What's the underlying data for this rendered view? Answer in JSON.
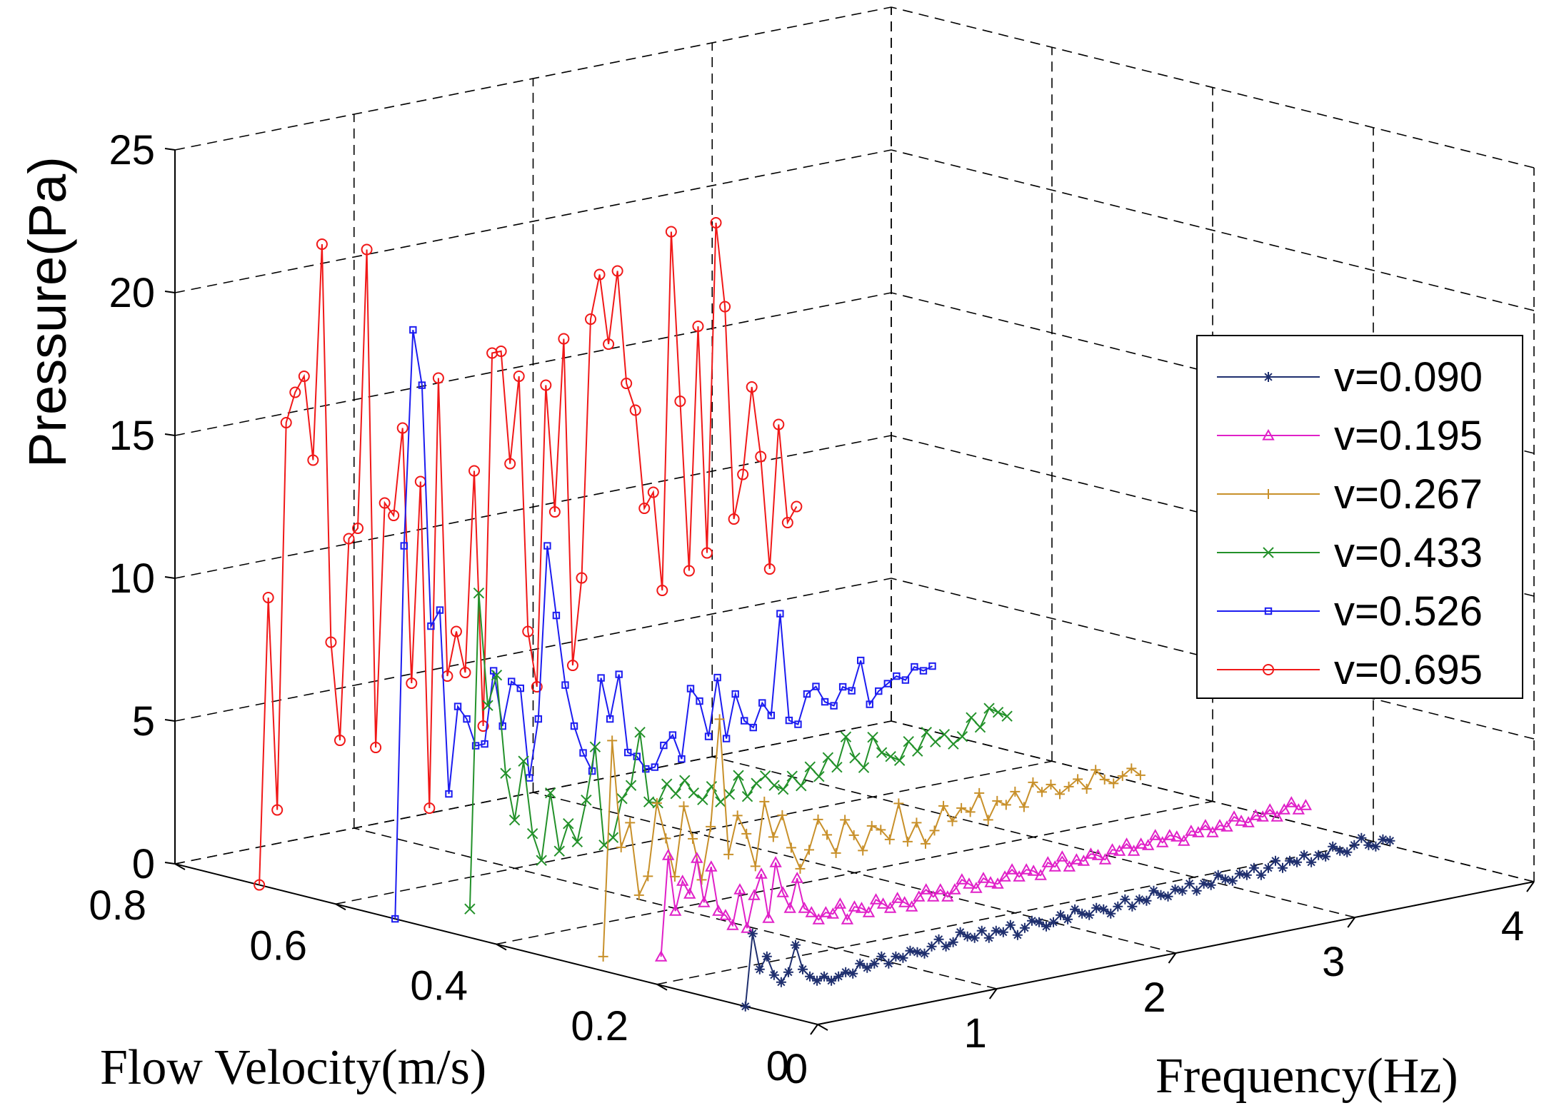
{
  "chart_data": {
    "type": "line3d",
    "title": "",
    "xlabel": "Frequency(Hz)",
    "ylabel": "Flow Velocity(m/s)",
    "zlabel": "Pressure(Pa)",
    "xlim": [
      0,
      4
    ],
    "ylim": [
      0,
      0.8
    ],
    "zlim": [
      0,
      25
    ],
    "xticks": [
      "0",
      "1",
      "2",
      "3",
      "4"
    ],
    "yticks": [
      "0",
      "0.2",
      "0.4",
      "0.6",
      "0.8"
    ],
    "zticks": [
      "0",
      "5",
      "10",
      "15",
      "20",
      "25"
    ],
    "grid": true,
    "legend_position": "right",
    "series": [
      {
        "name": "v=0.090",
        "velocity": 0.09,
        "color": "#1f2f6e",
        "marker": "star",
        "x": [
          0,
          0.04,
          0.08,
          0.12,
          0.16,
          0.2,
          0.24,
          0.28,
          0.32,
          0.36,
          0.4,
          0.44,
          0.48,
          0.52,
          0.56,
          0.6,
          0.64,
          0.68,
          0.72,
          0.76,
          0.8,
          0.84,
          0.88,
          0.92,
          0.96,
          1.0,
          1.04,
          1.08,
          1.12,
          1.16,
          1.2,
          1.24,
          1.28,
          1.32,
          1.36,
          1.4,
          1.44,
          1.48,
          1.52,
          1.56,
          1.6,
          1.64,
          1.68,
          1.72,
          1.76,
          1.8,
          1.84,
          1.88,
          1.92,
          1.96,
          2.0,
          2.04,
          2.08,
          2.12,
          2.16,
          2.2,
          2.24,
          2.28,
          2.32,
          2.36,
          2.4,
          2.44,
          2.48,
          2.52,
          2.56,
          2.6,
          2.64,
          2.68,
          2.72,
          2.76,
          2.8,
          2.84,
          2.88,
          2.92,
          2.96,
          3.0,
          3.04,
          3.08,
          3.12,
          3.16,
          3.2,
          3.24,
          3.28,
          3.32,
          3.36,
          3.4,
          3.44,
          3.48,
          3.52,
          3.56,
          3.6
        ],
        "z": [
          0,
          2.5,
          1.2,
          1.6,
          0.9,
          0.6,
          0.9,
          1.8,
          0.9,
          0.6,
          0.4,
          0.5,
          0.3,
          0.4,
          0.5,
          0.4,
          0.7,
          0.5,
          0.6,
          0.8,
          0.5,
          0.7,
          0.6,
          0.8,
          0.7,
          0.6,
          0.8,
          1.0,
          0.7,
          0.8,
          1.1,
          0.9,
          0.8,
          1.0,
          0.7,
          0.9,
          0.8,
          1.0,
          0.6,
          0.8,
          1.0,
          0.9,
          0.7,
          0.8,
          1.0,
          0.8,
          1.1,
          0.9,
          0.8,
          1.0,
          0.9,
          0.7,
          0.9,
          1.1,
          0.8,
          1.0,
          0.9,
          1.2,
          1.0,
          0.9,
          1.1,
          1.0,
          1.2,
          0.9,
          1.1,
          1.0,
          1.3,
          1.1,
          1.0,
          1.2,
          1.1,
          1.3,
          1.0,
          1.2,
          1.4,
          1.1,
          1.3,
          1.2,
          1.4,
          1.1,
          1.3,
          1.2,
          1.5,
          1.3,
          1.2,
          1.4,
          1.6,
          1.3,
          1.2,
          1.4,
          1.3
        ]
      },
      {
        "name": "v=0.195",
        "velocity": 0.195,
        "color": "#e020c8",
        "marker": "triangle",
        "x": [
          0,
          0.04,
          0.08,
          0.12,
          0.16,
          0.2,
          0.24,
          0.28,
          0.32,
          0.36,
          0.4,
          0.44,
          0.48,
          0.52,
          0.56,
          0.6,
          0.64,
          0.68,
          0.72,
          0.76,
          0.8,
          0.84,
          0.88,
          0.92,
          0.96,
          1.0,
          1.04,
          1.08,
          1.12,
          1.16,
          1.2,
          1.24,
          1.28,
          1.32,
          1.36,
          1.4,
          1.44,
          1.48,
          1.52,
          1.56,
          1.6,
          1.64,
          1.68,
          1.72,
          1.76,
          1.8,
          1.84,
          1.88,
          1.92,
          1.96,
          2.0,
          2.04,
          2.08,
          2.12,
          2.16,
          2.2,
          2.24,
          2.28,
          2.32,
          2.36,
          2.4,
          2.44,
          2.48,
          2.52,
          2.56,
          2.6,
          2.64,
          2.68,
          2.72,
          2.76,
          2.8,
          2.84,
          2.88,
          2.92,
          2.96,
          3.0,
          3.04,
          3.08,
          3.12,
          3.16,
          3.2,
          3.24,
          3.28,
          3.32,
          3.36,
          3.4,
          3.44,
          3.48,
          3.52,
          3.56,
          3.6
        ],
        "z": [
          1.0,
          4.5,
          2.5,
          3.5,
          3.0,
          4.2,
          2.6,
          3.8,
          2.2,
          2.0,
          1.6,
          2.8,
          1.4,
          2.5,
          3.2,
          1.6,
          3.5,
          2.4,
          1.8,
          2.8,
          1.7,
          1.5,
          1.2,
          1.4,
          1.3,
          1.6,
          1.0,
          1.4,
          1.3,
          1.1,
          1.5,
          1.3,
          1.1,
          1.4,
          1.2,
          1.0,
          1.3,
          1.5,
          1.2,
          1.4,
          1.1,
          1.3,
          1.6,
          1.4,
          1.2,
          1.5,
          1.3,
          1.2,
          1.4,
          1.6,
          1.3,
          1.5,
          1.4,
          1.2,
          1.6,
          1.4,
          1.7,
          1.3,
          1.5,
          1.4,
          1.6,
          1.5,
          1.3,
          1.6,
          1.5,
          1.7,
          1.4,
          1.6,
          1.5,
          1.8,
          1.5,
          1.7,
          1.6,
          1.4,
          1.7,
          1.6,
          1.8,
          1.5,
          1.7,
          1.6,
          1.9,
          1.7,
          1.6,
          1.8,
          1.7,
          1.9,
          1.6,
          1.8,
          2.0,
          1.7,
          1.8
        ]
      },
      {
        "name": "v=0.267",
        "velocity": 0.267,
        "color": "#c8902a",
        "marker": "plus",
        "x": [
          0,
          0.05,
          0.1,
          0.15,
          0.2,
          0.25,
          0.3,
          0.35,
          0.4,
          0.45,
          0.5,
          0.55,
          0.6,
          0.65,
          0.7,
          0.75,
          0.8,
          0.85,
          0.9,
          0.95,
          1.0,
          1.05,
          1.1,
          1.15,
          1.2,
          1.25,
          1.3,
          1.35,
          1.4,
          1.45,
          1.5,
          1.55,
          1.6,
          1.65,
          1.7,
          1.75,
          1.8,
          1.85,
          1.9,
          1.95,
          2.0,
          2.05,
          2.1,
          2.15,
          2.2,
          2.25,
          2.3,
          2.35,
          2.4,
          2.45,
          2.5,
          2.55,
          2.6,
          2.65,
          2.7,
          2.75,
          2.8,
          2.85,
          2.9,
          2.95,
          3.0
        ],
        "z": [
          0.5,
          8.0,
          4.2,
          5.0,
          2.4,
          3.0,
          5.5,
          4.2,
          2.8,
          5.2,
          4.0,
          2.5,
          4.3,
          8.0,
          3.2,
          4.5,
          3.8,
          2.6,
          4.8,
          3.5,
          4.2,
          3.0,
          2.2,
          2.8,
          3.8,
          3.2,
          2.5,
          3.6,
          3.0,
          2.4,
          3.2,
          3.0,
          2.6,
          3.8,
          2.4,
          3.0,
          2.2,
          2.6,
          3.4,
          2.8,
          3.2,
          3.0,
          3.6,
          2.6,
          3.2,
          3.0,
          3.4,
          2.8,
          3.6,
          3.2,
          3.4,
          3.0,
          3.2,
          3.4,
          3.0,
          3.6,
          3.2,
          3.0,
          3.2,
          3.4,
          3.1
        ]
      },
      {
        "name": "v=0.433",
        "velocity": 0.433,
        "color": "#23912a",
        "marker": "x",
        "x": [
          0,
          0.05,
          0.1,
          0.15,
          0.2,
          0.25,
          0.3,
          0.35,
          0.4,
          0.45,
          0.5,
          0.55,
          0.6,
          0.65,
          0.7,
          0.75,
          0.8,
          0.85,
          0.9,
          0.95,
          1.0,
          1.05,
          1.1,
          1.15,
          1.2,
          1.25,
          1.3,
          1.35,
          1.4,
          1.45,
          1.5,
          1.55,
          1.6,
          1.65,
          1.7,
          1.75,
          1.8,
          1.85,
          1.9,
          1.95,
          2.0,
          2.05,
          2.1,
          2.15,
          2.2,
          2.25,
          2.3,
          2.35,
          2.4,
          2.45,
          2.5,
          2.55,
          2.6,
          2.65,
          2.7,
          2.75,
          2.8,
          2.85,
          2.9,
          2.95,
          3.0
        ],
        "z": [
          1.0,
          12.0,
          8.0,
          9.0,
          5.5,
          3.8,
          5.8,
          3.2,
          2.2,
          4.5,
          2.4,
          3.3,
          2.6,
          4.0,
          5.8,
          2.3,
          2.5,
          3.8,
          4.2,
          6.0,
          3.5,
          3.4,
          4.0,
          3.6,
          4.0,
          3.5,
          3.2,
          3.6,
          3.0,
          3.2,
          3.8,
          3.0,
          3.4,
          3.6,
          3.2,
          3.0,
          3.4,
          3.0,
          3.6,
          3.2,
          3.8,
          3.4,
          4.4,
          3.6,
          3.2,
          4.2,
          3.6,
          3.4,
          3.2,
          3.8,
          3.4,
          4.0,
          3.6,
          3.8,
          3.4,
          3.6,
          4.2,
          3.8,
          4.4,
          4.2,
          4.0
        ]
      },
      {
        "name": "v=0.526",
        "velocity": 0.526,
        "color": "#1c1cf0",
        "marker": "square",
        "x": [
          0,
          0.05,
          0.1,
          0.15,
          0.2,
          0.25,
          0.3,
          0.35,
          0.4,
          0.45,
          0.5,
          0.55,
          0.6,
          0.65,
          0.7,
          0.75,
          0.8,
          0.85,
          0.9,
          0.95,
          1.0,
          1.05,
          1.1,
          1.15,
          1.2,
          1.25,
          1.3,
          1.35,
          1.4,
          1.45,
          1.5,
          1.55,
          1.6,
          1.65,
          1.7,
          1.75,
          1.8,
          1.85,
          1.9,
          1.95,
          2.0,
          2.05,
          2.1,
          2.15,
          2.2,
          2.25,
          2.3,
          2.35,
          2.4,
          2.45,
          2.5,
          2.55,
          2.6,
          2.65,
          2.7,
          2.75,
          2.8,
          2.85,
          2.9,
          2.95,
          3.0
        ],
        "z": [
          0.0,
          13.0,
          20.5,
          18.5,
          10.0,
          10.5,
          4.0,
          7.0,
          6.5,
          5.5,
          5.5,
          8.0,
          6.0,
          7.5,
          7.2,
          4.0,
          6.0,
          12.0,
          9.5,
          7.0,
          5.5,
          4.5,
          3.8,
          7.0,
          5.5,
          7.0,
          4.2,
          4.0,
          3.5,
          3.5,
          4.2,
          4.5,
          3.6,
          6.0,
          5.5,
          4.2,
          6.2,
          4.0,
          5.5,
          4.5,
          4.2,
          5.0,
          4.5,
          8.0,
          4.2,
          4.0,
          5.0,
          5.2,
          4.6,
          4.4,
          5.0,
          4.8,
          5.8,
          4.2,
          4.6,
          4.8,
          5.0,
          4.8,
          5.2,
          5.0,
          5.1
        ]
      },
      {
        "name": "v=0.695",
        "velocity": 0.695,
        "color": "#f01818",
        "marker": "circle",
        "x": [
          0,
          0.05,
          0.1,
          0.15,
          0.2,
          0.25,
          0.3,
          0.35,
          0.4,
          0.45,
          0.5,
          0.55,
          0.6,
          0.65,
          0.7,
          0.75,
          0.8,
          0.85,
          0.9,
          0.95,
          1.0,
          1.05,
          1.1,
          1.15,
          1.2,
          1.25,
          1.3,
          1.35,
          1.4,
          1.45,
          1.5,
          1.55,
          1.6,
          1.65,
          1.7,
          1.75,
          1.8,
          1.85,
          1.9,
          1.95,
          2.0,
          2.05,
          2.1,
          2.15,
          2.2,
          2.25,
          2.3,
          2.35,
          2.4,
          2.45,
          2.5,
          2.55,
          2.6,
          2.65,
          2.7,
          2.75,
          2.8,
          2.85,
          2.9,
          2.95,
          3.0
        ],
        "z": [
          0.0,
          10.0,
          2.5,
          16.0,
          17.0,
          17.5,
          14.5,
          22.0,
          8.0,
          4.5,
          11.5,
          11.8,
          21.5,
          4.0,
          12.5,
          12.0,
          15.0,
          6.0,
          13.0,
          1.5,
          16.5,
          6.0,
          7.5,
          6.0,
          13.0,
          4.0,
          17.0,
          17.0,
          13.0,
          16.0,
          7.0,
          5.0,
          15.5,
          11.0,
          17.0,
          5.5,
          8.5,
          17.5,
          19.0,
          16.5,
          19.0,
          15.0,
          14.0,
          10.5,
          11.0,
          7.5,
          20.0,
          14.0,
          8.0,
          16.5,
          8.5,
          20.0,
          17.0,
          9.5,
          11.0,
          14.0,
          11.5,
          7.5,
          12.5,
          9.0,
          9.5
        ]
      }
    ]
  }
}
